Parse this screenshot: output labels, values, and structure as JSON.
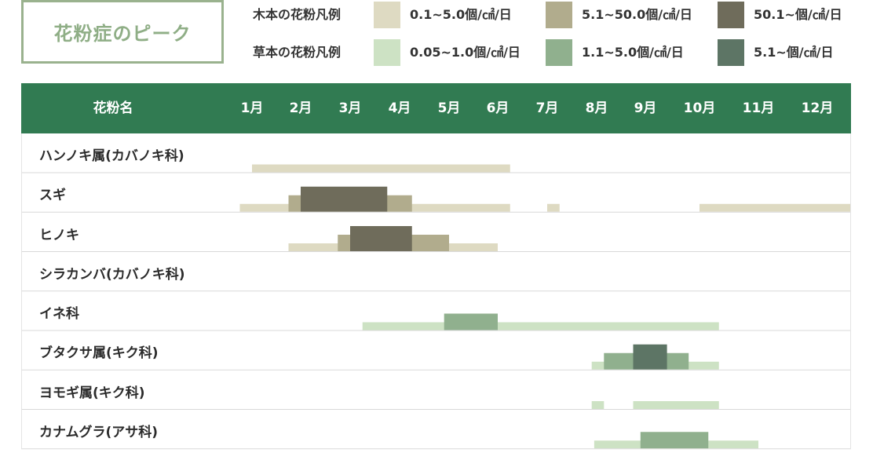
{
  "title": "花粉症のピーク",
  "legend": {
    "tree": {
      "label": "木本の花粉凡例",
      "items": [
        {
          "text": "0.1~5.0個/㎠/日",
          "color": "#dedac2"
        },
        {
          "text": "5.1~50.0個/㎠/日",
          "color": "#b1ac8d"
        },
        {
          "text": "50.1~個/㎠/日",
          "color": "#6f6c5b"
        }
      ]
    },
    "grass": {
      "label": "草本の花粉凡例",
      "items": [
        {
          "text": "0.05~1.0個/㎠/日",
          "color": "#cde2c4"
        },
        {
          "text": "1.1~5.0個/㎠/日",
          "color": "#90b08e"
        },
        {
          "text": "5.1~個/㎠/日",
          "color": "#5d7565"
        }
      ]
    }
  },
  "header": {
    "name_col": "花粉名",
    "months": [
      "1月",
      "2月",
      "3月",
      "4月",
      "5月",
      "6月",
      "7月",
      "8月",
      "9月",
      "10月",
      "11月",
      "12月"
    ],
    "color": "#317b52"
  },
  "chart_data": {
    "type": "gantt",
    "x_unit": "month",
    "xlim": [
      0.75,
      13.25
    ],
    "rows": [
      {
        "name": "ハンノキ属(カバノキ科)",
        "group": "tree",
        "segments": [
          {
            "start": 1.0,
            "end": 6.25,
            "level": 1
          }
        ]
      },
      {
        "name": "スギ",
        "group": "tree",
        "segments": [
          {
            "start": 0.75,
            "end": 6.25,
            "level": 1
          },
          {
            "start": 1.75,
            "end": 4.25,
            "level": 2
          },
          {
            "start": 2.0,
            "end": 3.75,
            "level": 3
          },
          {
            "start": 7.0,
            "end": 7.25,
            "level": 1
          },
          {
            "start": 10.0,
            "end": 13.25,
            "level": 1
          }
        ]
      },
      {
        "name": "ヒノキ",
        "group": "tree",
        "segments": [
          {
            "start": 1.75,
            "end": 6.0,
            "level": 1
          },
          {
            "start": 2.75,
            "end": 5.0,
            "level": 2
          },
          {
            "start": 3.0,
            "end": 4.25,
            "level": 3
          }
        ]
      },
      {
        "name": "シラカンバ(カバノキ科)",
        "group": "tree",
        "segments": []
      },
      {
        "name": "イネ科",
        "group": "grass",
        "segments": [
          {
            "start": 3.25,
            "end": 10.33,
            "level": 1
          },
          {
            "start": 4.9,
            "end": 6.0,
            "level": 2
          }
        ]
      },
      {
        "name": "ブタクサ属(キク科)",
        "group": "grass",
        "segments": [
          {
            "start": 7.9,
            "end": 10.33,
            "level": 1
          },
          {
            "start": 8.15,
            "end": 9.8,
            "level": 2
          },
          {
            "start": 8.75,
            "end": 9.4,
            "level": 3
          }
        ]
      },
      {
        "name": "ヨモギ属(キク科)",
        "group": "grass",
        "segments": [
          {
            "start": 7.9,
            "end": 8.15,
            "level": 1
          },
          {
            "start": 8.75,
            "end": 10.33,
            "level": 1
          }
        ]
      },
      {
        "name": "カナムグラ(アサ科)",
        "group": "grass",
        "segments": [
          {
            "start": 7.95,
            "end": 11.0,
            "level": 1
          },
          {
            "start": 8.9,
            "end": 10.15,
            "level": 2
          }
        ]
      }
    ]
  }
}
